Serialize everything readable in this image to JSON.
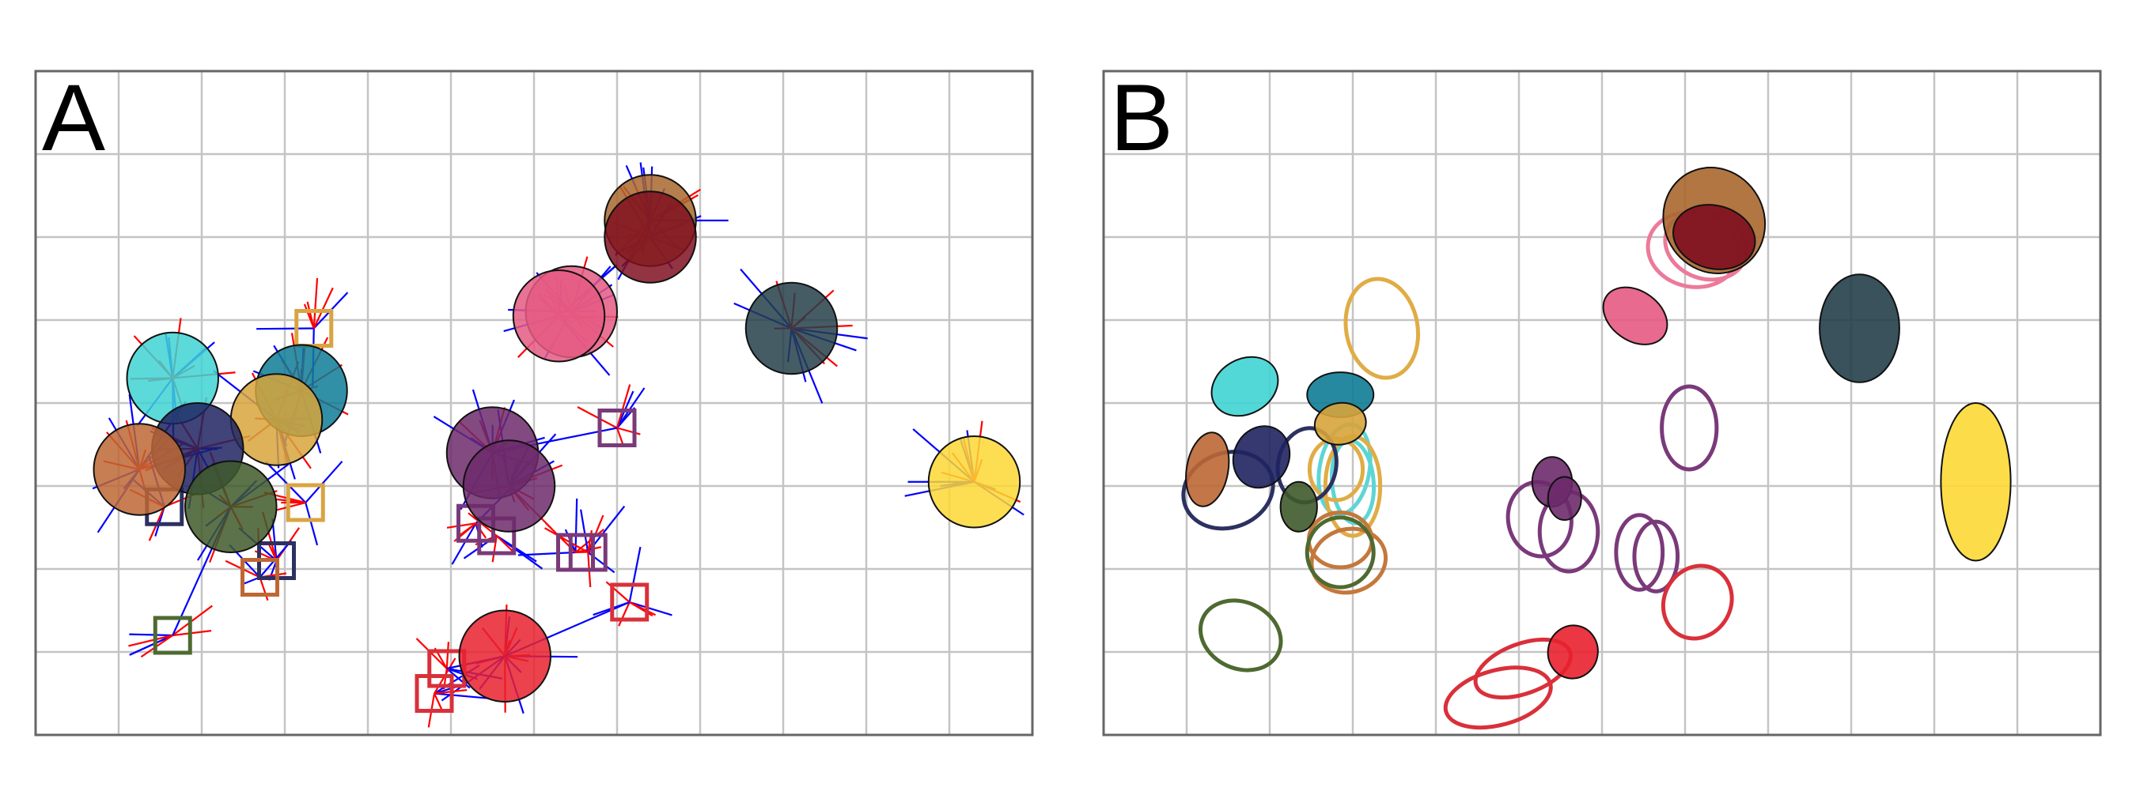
{
  "colors": {
    "grid": "#c4c4c4",
    "frame": "#666666",
    "stroke": "#111111",
    "ray_blue": "#0000ff",
    "ray_red": "#ff0000"
  },
  "chart_data": [
    {
      "type": "scatter",
      "panel_label": "A",
      "xlim": [
        0,
        12
      ],
      "ylim": [
        0,
        8
      ],
      "grid": true,
      "title": "",
      "xlabel": "",
      "ylabel": "",
      "circles": [
        {
          "x": 7.4,
          "y": 6.2,
          "r": 0.55,
          "color": "#a8672d"
        },
        {
          "x": 7.4,
          "y": 6.0,
          "r": 0.55,
          "color": "#7f1020"
        },
        {
          "x": 6.45,
          "y": 5.1,
          "r": 0.55,
          "color": "#e55a82"
        },
        {
          "x": 6.3,
          "y": 5.05,
          "r": 0.55,
          "color": "#e55a82"
        },
        {
          "x": 9.1,
          "y": 4.9,
          "r": 0.55,
          "color": "#243f4a"
        },
        {
          "x": 1.65,
          "y": 4.3,
          "r": 0.55,
          "color": "#40d4d4"
        },
        {
          "x": 3.2,
          "y": 4.15,
          "r": 0.55,
          "color": "#0e7c96"
        },
        {
          "x": 2.9,
          "y": 3.8,
          "r": 0.55,
          "color": "#d7a43b"
        },
        {
          "x": 1.95,
          "y": 3.45,
          "r": 0.55,
          "color": "#1f2361"
        },
        {
          "x": 1.25,
          "y": 3.2,
          "r": 0.55,
          "color": "#bd6734"
        },
        {
          "x": 2.35,
          "y": 2.75,
          "r": 0.55,
          "color": "#3f5a2a"
        },
        {
          "x": 5.5,
          "y": 3.4,
          "r": 0.55,
          "color": "#6d2a6b"
        },
        {
          "x": 5.7,
          "y": 3.0,
          "r": 0.55,
          "color": "#6d2a6b"
        },
        {
          "x": 11.3,
          "y": 3.05,
          "r": 0.55,
          "color": "#fdd835"
        },
        {
          "x": 5.65,
          "y": 0.95,
          "r": 0.55,
          "color": "#e8212f"
        }
      ],
      "squares": [
        {
          "x": 3.35,
          "y": 4.9,
          "color": "#d9a441"
        },
        {
          "x": 7.0,
          "y": 3.7,
          "color": "#7a3a7a"
        },
        {
          "x": 3.25,
          "y": 2.8,
          "color": "#d9a441"
        },
        {
          "x": 1.55,
          "y": 2.75,
          "color": "#2d3160"
        },
        {
          "x": 5.3,
          "y": 2.55,
          "color": "#7a3a7a"
        },
        {
          "x": 5.55,
          "y": 2.4,
          "color": "#7a3a7a"
        },
        {
          "x": 6.5,
          "y": 2.2,
          "color": "#7a3a7a"
        },
        {
          "x": 6.65,
          "y": 2.2,
          "color": "#7a3a7a"
        },
        {
          "x": 2.9,
          "y": 2.1,
          "color": "#2d3160"
        },
        {
          "x": 2.7,
          "y": 1.9,
          "color": "#bd6734"
        },
        {
          "x": 7.15,
          "y": 1.6,
          "color": "#d9303a"
        },
        {
          "x": 1.65,
          "y": 1.2,
          "color": "#4e6a30"
        },
        {
          "x": 4.95,
          "y": 0.8,
          "color": "#d9303a"
        },
        {
          "x": 4.8,
          "y": 0.5,
          "color": "#d9303a"
        }
      ]
    },
    {
      "type": "scatter",
      "panel_label": "B",
      "xlim": [
        0,
        12
      ],
      "ylim": [
        0,
        8
      ],
      "grid": true,
      "title": "",
      "xlabel": "",
      "ylabel": "",
      "filled_ellipses": [
        {
          "x": 7.35,
          "y": 6.2,
          "rx": 0.6,
          "ry": 0.65,
          "angle": -30,
          "color": "#a8672d"
        },
        {
          "x": 7.35,
          "y": 6.0,
          "rx": 0.5,
          "ry": 0.38,
          "angle": 15,
          "color": "#7f1020"
        },
        {
          "x": 6.4,
          "y": 5.05,
          "rx": 0.42,
          "ry": 0.3,
          "angle": 35,
          "color": "#e55a82"
        },
        {
          "x": 9.1,
          "y": 4.9,
          "rx": 0.48,
          "ry": 0.65,
          "angle": 0,
          "color": "#243f4a"
        },
        {
          "x": 1.7,
          "y": 4.2,
          "rx": 0.42,
          "ry": 0.33,
          "angle": -30,
          "color": "#40d4d4"
        },
        {
          "x": 2.85,
          "y": 4.1,
          "rx": 0.4,
          "ry": 0.27,
          "angle": 0,
          "color": "#0e7c96"
        },
        {
          "x": 2.85,
          "y": 3.75,
          "rx": 0.31,
          "ry": 0.25,
          "angle": -10,
          "color": "#d7a43b"
        },
        {
          "x": 1.9,
          "y": 3.35,
          "rx": 0.33,
          "ry": 0.38,
          "angle": 25,
          "color": "#1f2361"
        },
        {
          "x": 1.25,
          "y": 3.2,
          "rx": 0.25,
          "ry": 0.45,
          "angle": 10,
          "color": "#bd6734"
        },
        {
          "x": 2.35,
          "y": 2.75,
          "rx": 0.22,
          "ry": 0.3,
          "angle": 0,
          "color": "#3f5a2a"
        },
        {
          "x": 5.4,
          "y": 3.05,
          "rx": 0.24,
          "ry": 0.3,
          "angle": 0,
          "color": "#6d2a6b"
        },
        {
          "x": 5.55,
          "y": 2.85,
          "rx": 0.2,
          "ry": 0.26,
          "angle": 0,
          "color": "#6d2a6b"
        },
        {
          "x": 10.5,
          "y": 3.05,
          "rx": 0.42,
          "ry": 0.95,
          "angle": 0,
          "color": "#fdd835"
        },
        {
          "x": 5.65,
          "y": 1.0,
          "rx": 0.3,
          "ry": 0.32,
          "angle": 10,
          "color": "#e8212f"
        }
      ],
      "outline_ellipses": [
        {
          "x": 3.35,
          "y": 4.9,
          "rx": 0.43,
          "ry": 0.6,
          "angle": -10,
          "color": "#e0ac45"
        },
        {
          "x": 7.1,
          "y": 5.85,
          "rx": 0.55,
          "ry": 0.45,
          "angle": 10,
          "color": "#ec7a9a"
        },
        {
          "x": 7.25,
          "y": 5.9,
          "rx": 0.5,
          "ry": 0.4,
          "angle": 20,
          "color": "#ec7a9a"
        },
        {
          "x": 7.05,
          "y": 3.7,
          "rx": 0.33,
          "ry": 0.5,
          "angle": 0,
          "color": "#7a3a7a"
        },
        {
          "x": 2.9,
          "y": 3.2,
          "rx": 0.3,
          "ry": 0.55,
          "angle": 10,
          "color": "#5ed5d5"
        },
        {
          "x": 3.0,
          "y": 3.05,
          "rx": 0.25,
          "ry": 0.5,
          "angle": -5,
          "color": "#5ed5d5"
        },
        {
          "x": 3.0,
          "y": 3.0,
          "rx": 0.33,
          "ry": 0.6,
          "angle": 0,
          "color": "#e0ac45"
        },
        {
          "x": 2.8,
          "y": 3.2,
          "rx": 0.32,
          "ry": 0.37,
          "angle": 0,
          "color": "#e0ac45"
        },
        {
          "x": 1.5,
          "y": 2.95,
          "rx": 0.55,
          "ry": 0.45,
          "angle": -20,
          "color": "#2d3160"
        },
        {
          "x": 2.45,
          "y": 3.25,
          "rx": 0.35,
          "ry": 0.45,
          "angle": 10,
          "color": "#2d3160"
        },
        {
          "x": 2.95,
          "y": 2.1,
          "rx": 0.45,
          "ry": 0.38,
          "angle": -15,
          "color": "#c4783c"
        },
        {
          "x": 2.85,
          "y": 2.35,
          "rx": 0.38,
          "ry": 0.33,
          "angle": 0,
          "color": "#c4783c"
        },
        {
          "x": 2.85,
          "y": 2.2,
          "rx": 0.4,
          "ry": 0.42,
          "angle": 0,
          "color": "#4e6a30"
        },
        {
          "x": 1.65,
          "y": 1.2,
          "rx": 0.5,
          "ry": 0.4,
          "angle": 25,
          "color": "#4e6a30"
        },
        {
          "x": 5.25,
          "y": 2.6,
          "rx": 0.38,
          "ry": 0.45,
          "angle": -10,
          "color": "#7a3a7a"
        },
        {
          "x": 5.6,
          "y": 2.45,
          "rx": 0.35,
          "ry": 0.48,
          "angle": 0,
          "color": "#7a3a7a"
        },
        {
          "x": 6.45,
          "y": 2.2,
          "rx": 0.28,
          "ry": 0.45,
          "angle": 0,
          "color": "#7a3a7a"
        },
        {
          "x": 6.65,
          "y": 2.15,
          "rx": 0.26,
          "ry": 0.42,
          "angle": 0,
          "color": "#7a3a7a"
        },
        {
          "x": 7.15,
          "y": 1.6,
          "rx": 0.4,
          "ry": 0.45,
          "angle": 30,
          "color": "#d9303a"
        },
        {
          "x": 5.05,
          "y": 0.8,
          "rx": 0.6,
          "ry": 0.3,
          "angle": -20,
          "color": "#d9303a"
        },
        {
          "x": 4.75,
          "y": 0.45,
          "rx": 0.65,
          "ry": 0.33,
          "angle": -15,
          "color": "#d9303a"
        }
      ]
    }
  ]
}
